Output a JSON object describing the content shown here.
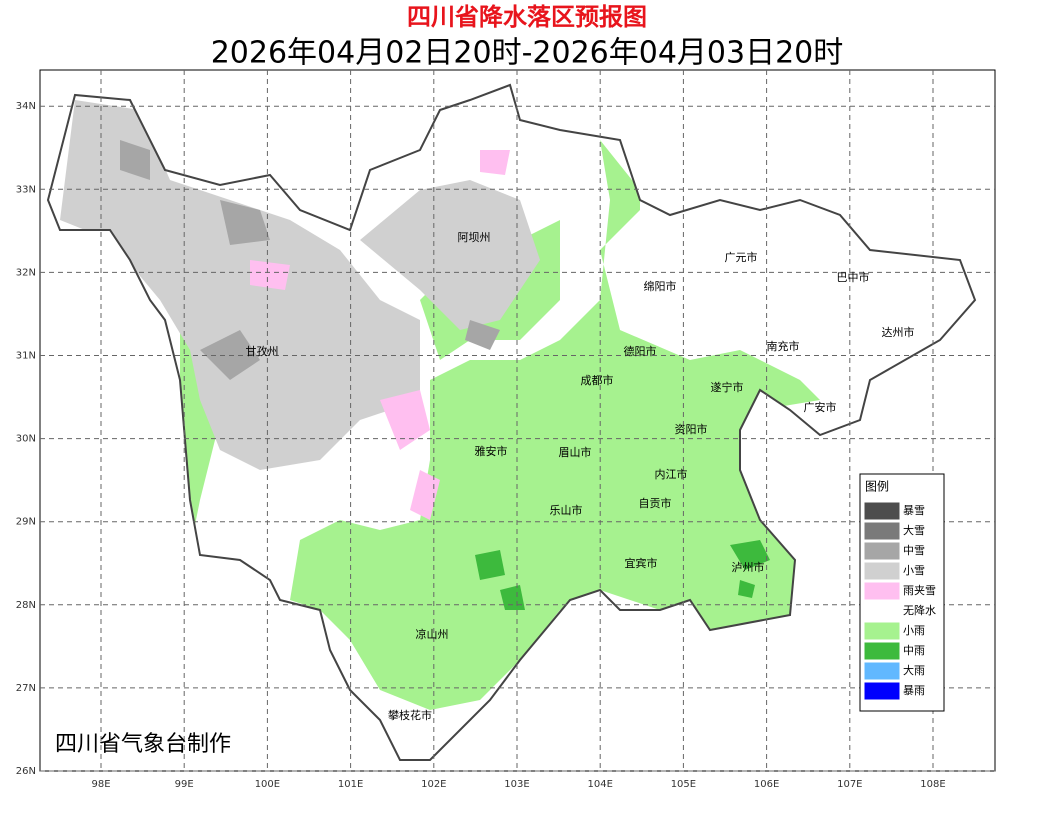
{
  "title": "四川省降水落区预报图",
  "subtitle": "2026年04月02日20时-2026年04月03日20时",
  "credit": "四川省气象台制作",
  "lat_ticks": [
    {
      "value": 34,
      "label": "34N"
    },
    {
      "value": 33,
      "label": "33N"
    },
    {
      "value": 32,
      "label": "32N"
    },
    {
      "value": 31,
      "label": "31N"
    },
    {
      "value": 30,
      "label": "30N"
    },
    {
      "value": 29,
      "label": "29N"
    },
    {
      "value": 28,
      "label": "28N"
    },
    {
      "value": 27,
      "label": "27N"
    },
    {
      "value": 26,
      "label": "26N"
    }
  ],
  "lon_ticks": [
    {
      "value": 98,
      "label": "98E"
    },
    {
      "value": 99,
      "label": "99E"
    },
    {
      "value": 100,
      "label": "100E"
    },
    {
      "value": 101,
      "label": "101E"
    },
    {
      "value": 102,
      "label": "102E"
    },
    {
      "value": 103,
      "label": "103E"
    },
    {
      "value": 104,
      "label": "104E"
    },
    {
      "value": 105,
      "label": "105E"
    },
    {
      "value": 106,
      "label": "106E"
    },
    {
      "value": 107,
      "label": "107E"
    },
    {
      "value": 108,
      "label": "108E"
    }
  ],
  "cities": [
    "阿坝州",
    "广元市",
    "巴中市",
    "绵阳市",
    "甘孜州",
    "德阳市",
    "南充市",
    "达州市",
    "成都市",
    "遂宁市",
    "广安市",
    "资阳市",
    "雅安市",
    "眉山市",
    "内江市",
    "自贡市",
    "乐山市",
    "宜宾市",
    "泸州市",
    "凉山州",
    "攀枝花市"
  ],
  "legend": {
    "title": "图例",
    "items": [
      {
        "name": "暴雪",
        "color": "#4d4d4d"
      },
      {
        "name": "大雪",
        "color": "#7a7a7a"
      },
      {
        "name": "中雪",
        "color": "#a6a6a6"
      },
      {
        "name": "小雪",
        "color": "#d0d0d0"
      },
      {
        "name": "雨夹雪",
        "color": "#ffbff0"
      },
      {
        "name": "无降水",
        "color": "#ffffff"
      },
      {
        "name": "小雨",
        "color": "#a6f28f"
      },
      {
        "name": "中雨",
        "color": "#3dba3d"
      },
      {
        "name": "大雨",
        "color": "#61b8ff"
      },
      {
        "name": "暴雨",
        "color": "#0000fe"
      }
    ]
  }
}
